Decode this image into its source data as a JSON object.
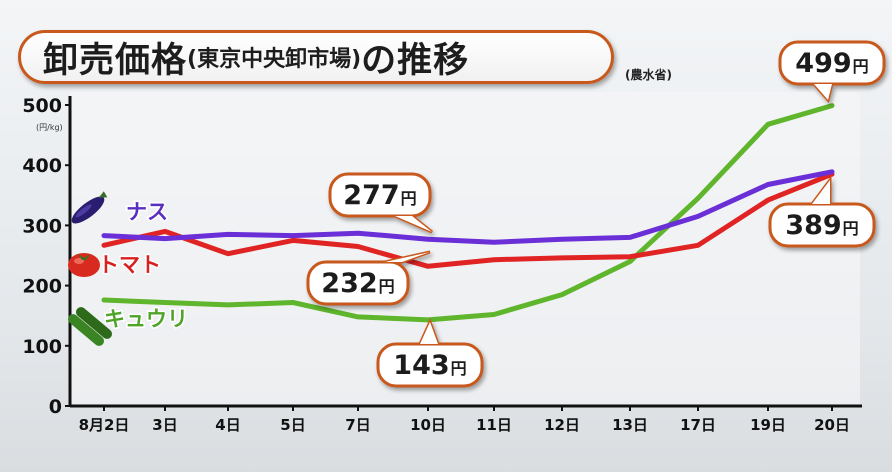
{
  "title": {
    "main_prefix": "卸売価格",
    "sub": "(東京中央卸市場)",
    "main_suffix": "の推移"
  },
  "source": "(農水省)",
  "unit_note": "(円/kg)",
  "chart_data": {
    "type": "line",
    "categories": [
      "8月2日",
      "3日",
      "4日",
      "5日",
      "7日",
      "10日",
      "11日",
      "12日",
      "13日",
      "17日",
      "19日",
      "20日"
    ],
    "ylim": [
      0,
      500
    ],
    "yticks": [
      0,
      100,
      200,
      300,
      400,
      500
    ],
    "grid": false,
    "legend_position": "left",
    "series": [
      {
        "name": "ナス",
        "color": "#6a2fd6",
        "label_color": "#5a2fc0",
        "values": [
          283,
          278,
          285,
          283,
          287,
          277,
          272,
          277,
          280,
          315,
          368,
          389
        ]
      },
      {
        "name": "トマト",
        "color": "#e02424",
        "label_color": "#d92020",
        "values": [
          267,
          290,
          253,
          275,
          265,
          232,
          243,
          246,
          248,
          267,
          342,
          385
        ]
      },
      {
        "name": "キュウリ",
        "color": "#5fb52b",
        "label_color": "#4fa428",
        "values": [
          176,
          172,
          168,
          172,
          148,
          143,
          152,
          185,
          240,
          345,
          468,
          499
        ]
      }
    ],
    "callouts": [
      {
        "text": "277",
        "unit": "円",
        "series": 0,
        "index": 5
      },
      {
        "text": "232",
        "unit": "円",
        "series": 1,
        "index": 5
      },
      {
        "text": "143",
        "unit": "円",
        "series": 2,
        "index": 5
      },
      {
        "text": "499",
        "unit": "円",
        "series": 2,
        "index": 11
      },
      {
        "text": "389",
        "unit": "円",
        "series": 0,
        "index": 11
      }
    ]
  }
}
